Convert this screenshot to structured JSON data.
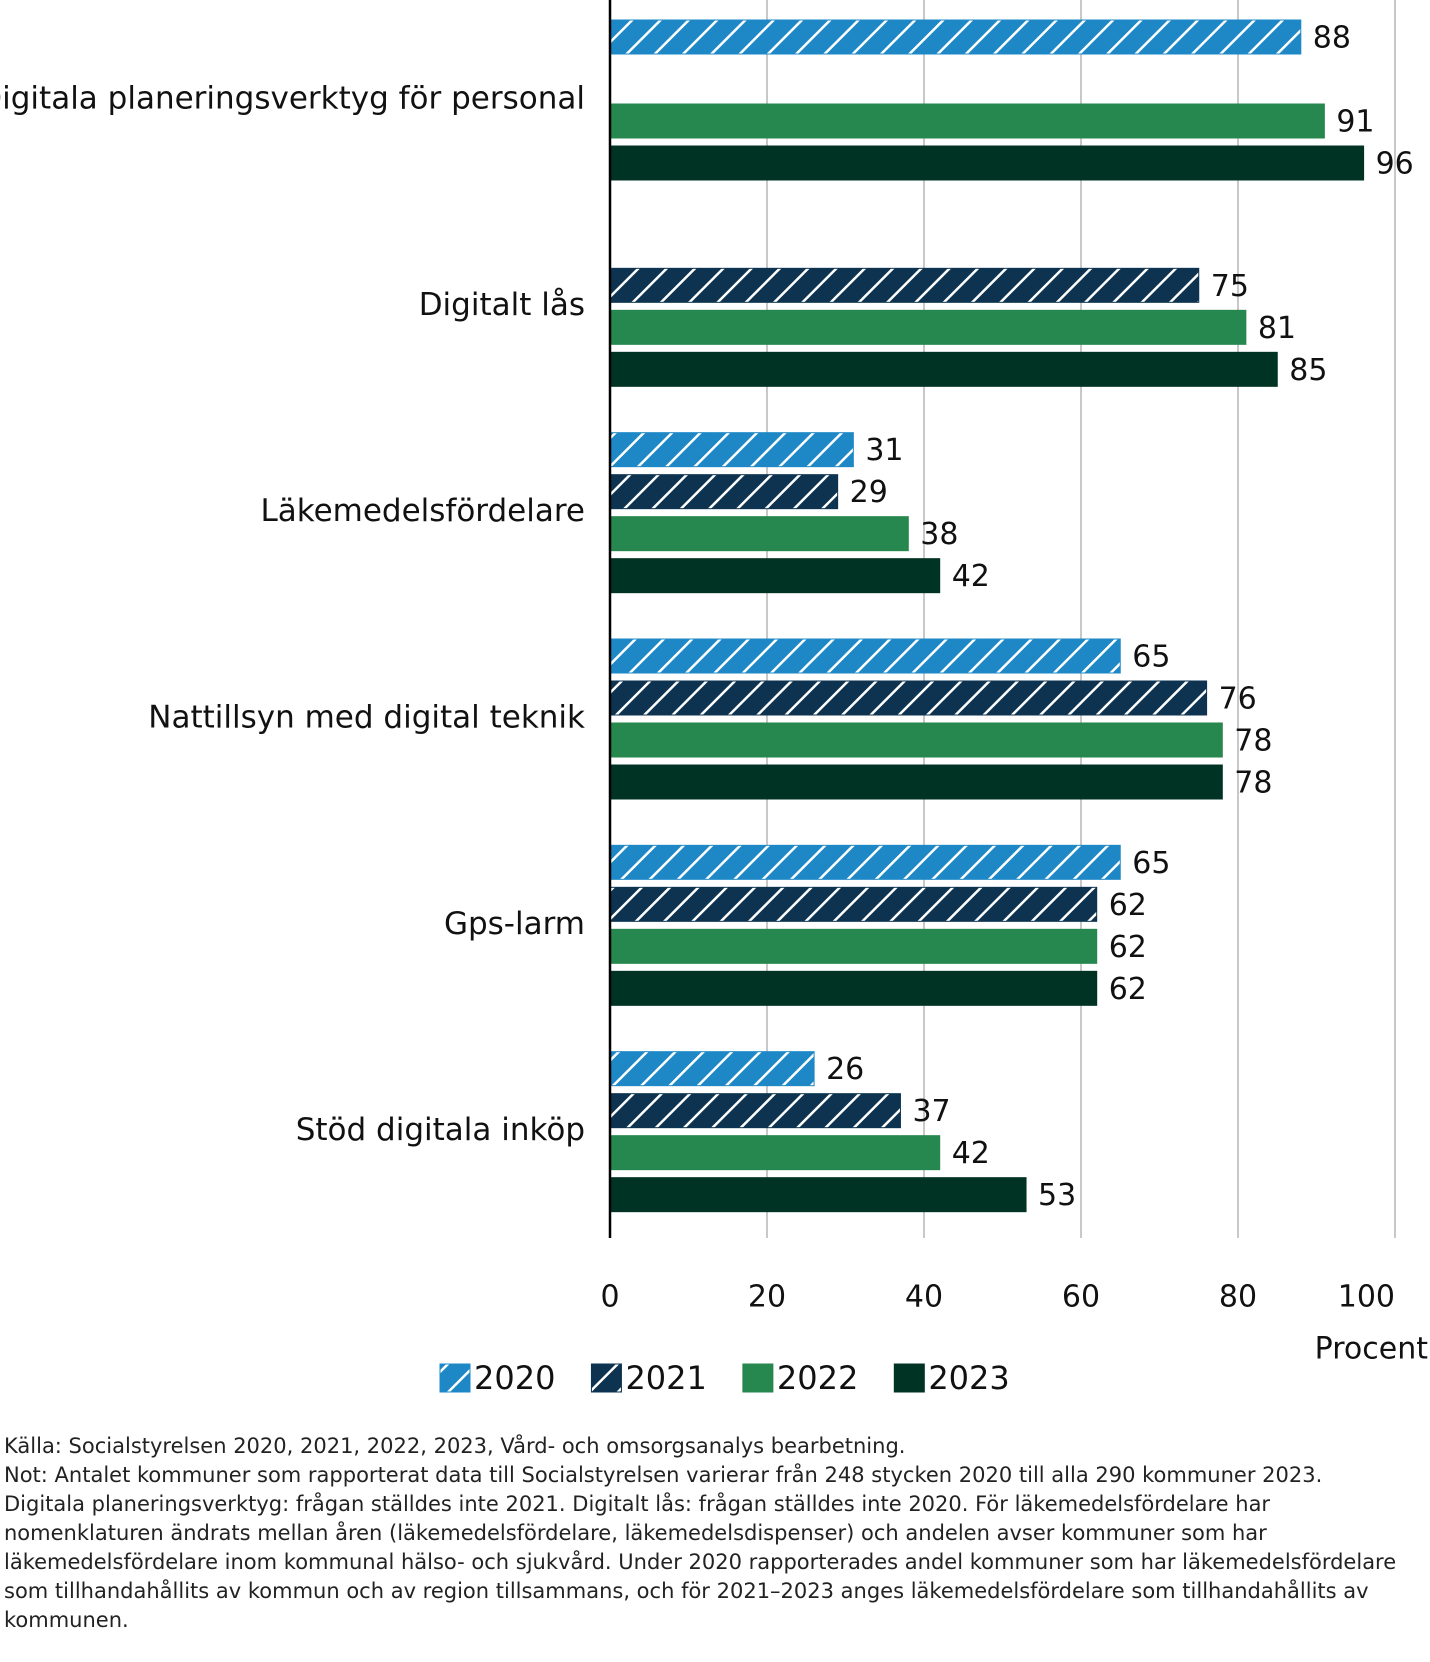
{
  "chart_data": {
    "type": "bar",
    "orientation": "horizontal",
    "categories": [
      "Digitala planeringsverktyg för personal",
      "Digitalt lås",
      "Läkemedelsfördelare",
      "Nattillsyn med digital teknik",
      "Gps-larm",
      "Stöd digitala inköp"
    ],
    "series": [
      {
        "name": "2020",
        "color": "#1e88c7",
        "hatch": true,
        "values": [
          88,
          null,
          31,
          65,
          65,
          26
        ]
      },
      {
        "name": "2021",
        "color": "#0d3350",
        "hatch": true,
        "values": [
          null,
          75,
          29,
          76,
          62,
          37
        ]
      },
      {
        "name": "2022",
        "color": "#26874f",
        "hatch": false,
        "values": [
          91,
          81,
          38,
          78,
          62,
          42
        ]
      },
      {
        "name": "2023",
        "color": "#003324",
        "hatch": false,
        "values": [
          96,
          85,
          42,
          78,
          62,
          53
        ]
      }
    ],
    "xlim": [
      0,
      100
    ],
    "xticks": [
      0,
      20,
      40,
      60,
      80,
      100
    ],
    "grid": true,
    "x_label": "Procent",
    "legend": "bottom",
    "source": "Källa: Socialstyrelsen 2020, 2021, 2022, 2023, Vård- och omsorgsanalys bearbetning.",
    "note": "Not: Antalet kommuner som rapporterat data till Socialstyrelsen varierar från 248 stycken 2020 till alla 290 kommuner 2023. Digitala planeringsverktyg: frågan ställdes inte 2021. Digitalt lås: frågan ställdes inte 2020. För läkemedelsfördelare har nomenklaturen ändrats mellan åren (läkemedelsfördelare, läkemedelsdispenser) och andelen avser kommuner som har läkemedelsfördelare inom kommunal hälso- och sjukvård. Under 2020 rapporterades andel kommuner som har läkemedelsfördelare som tillhandahållits av kommun och av region tillsammans, och för 2021–2023 anges läkemedelsfördelare som tillhandahållits av kommunen."
  }
}
